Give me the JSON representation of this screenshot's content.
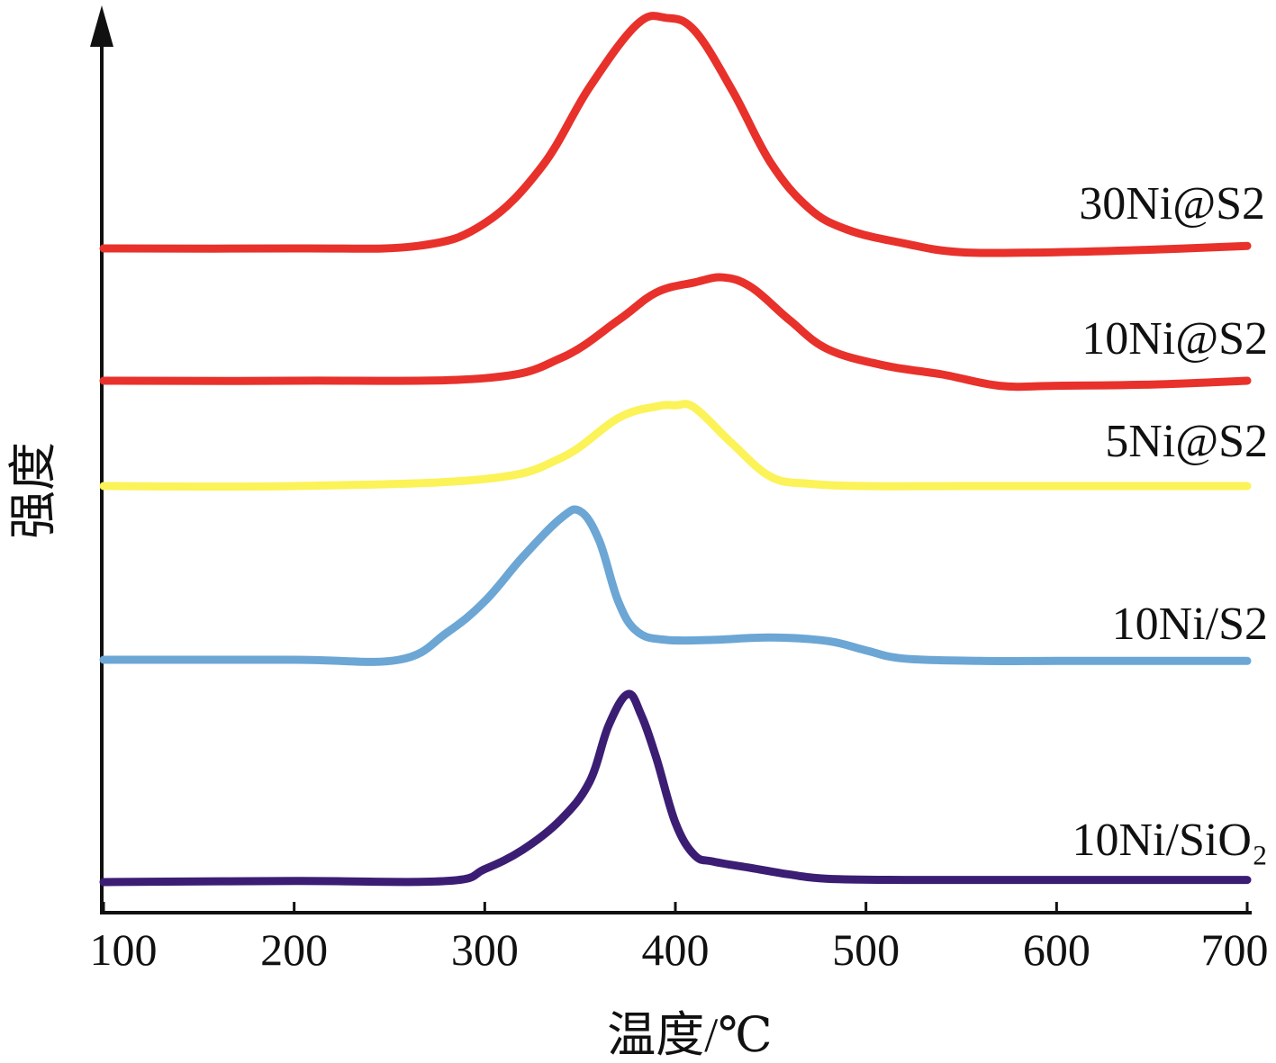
{
  "chart_data": {
    "type": "line",
    "xlabel": "温度/℃",
    "ylabel": "强度",
    "xlim": [
      100,
      700
    ],
    "x_ticks": [
      "100",
      "200",
      "300",
      "400",
      "500",
      "600",
      "700"
    ],
    "y_ticks": [],
    "y_units": "arbitrary (stacked curves)",
    "grid": false,
    "legend": "none (series labelled at right end of each curve)",
    "series": [
      {
        "name": "30Ni@S2",
        "color": "#e8312b",
        "x": [
          100,
          200,
          265,
          300,
          330,
          355,
          380,
          395,
          410,
          430,
          450,
          470,
          490,
          520,
          550,
          600,
          650,
          700
        ],
        "y": [
          0,
          0,
          0.2,
          2.0,
          6.5,
          12.8,
          17.8,
          18.3,
          17.3,
          12.5,
          6.8,
          3.2,
          1.5,
          0.4,
          -0.3,
          -0.3,
          -0.1,
          0.2
        ]
      },
      {
        "name": "10Ni@S2",
        "color": "#e8312b",
        "x": [
          100,
          200,
          300,
          340,
          370,
          390,
          410,
          425,
          440,
          460,
          480,
          510,
          540,
          570,
          600,
          650,
          700
        ],
        "y": [
          0,
          0,
          0.2,
          1.8,
          4.8,
          7.0,
          7.8,
          8.2,
          7.4,
          4.8,
          2.5,
          1.2,
          0.5,
          -0.4,
          -0.4,
          -0.3,
          0
        ]
      },
      {
        "name": "5Ni@S2",
        "color": "#fbf358",
        "x": [
          100,
          200,
          300,
          340,
          370,
          390,
          400,
          410,
          430,
          450,
          470,
          500,
          550,
          600,
          650,
          700
        ],
        "y": [
          0,
          0,
          0.6,
          2.4,
          5.8,
          6.8,
          6.9,
          6.7,
          3.6,
          0.8,
          0.2,
          0,
          0,
          0,
          0,
          0
        ]
      },
      {
        "name": "10Ni/S2",
        "color": "#6ba6d5",
        "x": [
          100,
          200,
          255,
          280,
          300,
          320,
          340,
          350,
          360,
          370,
          380,
          395,
          420,
          450,
          480,
          500,
          520,
          560,
          600,
          650,
          700
        ],
        "y": [
          0,
          0,
          0,
          2.3,
          5.0,
          8.8,
          12.1,
          12.7,
          10.2,
          5.0,
          2.4,
          1.7,
          1.7,
          1.9,
          1.6,
          0.8,
          0.1,
          -0.1,
          -0.1,
          -0.1,
          -0.1
        ]
      },
      {
        "name": "10Ni/SiO₂",
        "color": "#3b1e74",
        "x": [
          100,
          200,
          280,
          300,
          320,
          340,
          355,
          365,
          375,
          382,
          390,
          400,
          410,
          420,
          440,
          460,
          480,
          520,
          600,
          700
        ],
        "y": [
          0,
          0.1,
          0.1,
          1.2,
          3.0,
          5.8,
          9.3,
          14.5,
          17.4,
          15.5,
          11.5,
          5.5,
          2.5,
          1.9,
          1.3,
          0.7,
          0.3,
          0.2,
          0.2,
          0.2
        ]
      }
    ]
  }
}
